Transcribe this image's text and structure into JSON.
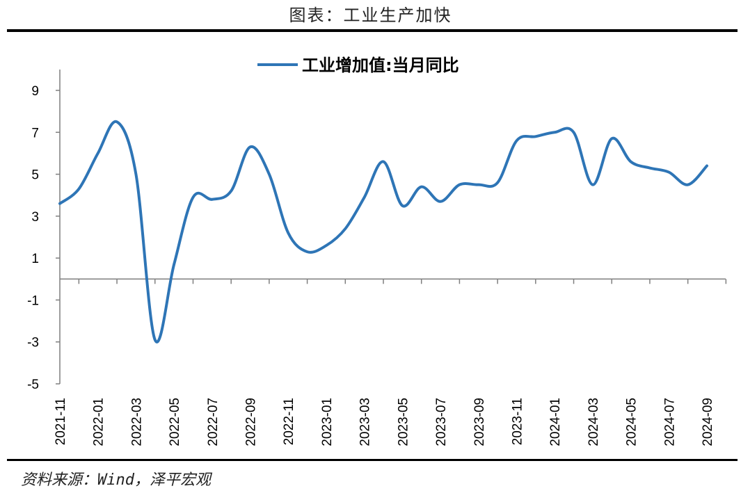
{
  "figure": {
    "title": "图表：工业生产加快",
    "source": "资料来源：Wind，泽平宏观"
  },
  "chart_data": {
    "type": "line",
    "title": "",
    "xlabel": "",
    "ylabel": "",
    "ylim": [
      -5,
      9
    ],
    "yticks": [
      9,
      7,
      5,
      3,
      1,
      -1,
      -3,
      -5
    ],
    "grid": false,
    "legend_position": "top-center",
    "x_tick_labels": [
      "2021-11",
      "2022-01",
      "2022-03",
      "2022-05",
      "2022-07",
      "2022-09",
      "2022-11",
      "2023-01",
      "2023-03",
      "2023-05",
      "2023-07",
      "2023-09",
      "2023-11",
      "2024-01",
      "2024-03",
      "2024-05",
      "2024-07",
      "2024-09"
    ],
    "x": [
      "2021-11",
      "2021-12",
      "2022-01",
      "2022-02",
      "2022-03",
      "2022-04",
      "2022-05",
      "2022-06",
      "2022-07",
      "2022-08",
      "2022-09",
      "2022-10",
      "2022-11",
      "2022-12",
      "2023-01",
      "2023-02",
      "2023-03",
      "2023-04",
      "2023-05",
      "2023-06",
      "2023-07",
      "2023-08",
      "2023-09",
      "2023-10",
      "2023-11",
      "2023-12",
      "2024-01",
      "2024-02",
      "2024-03",
      "2024-04",
      "2024-05",
      "2024-06",
      "2024-07",
      "2024-08",
      "2024-09"
    ],
    "series": [
      {
        "name": "工业增加值:当月同比",
        "color": "#2e75b6",
        "values": [
          3.6,
          4.3,
          6.0,
          7.5,
          5.0,
          -2.9,
          0.7,
          3.9,
          3.8,
          4.2,
          6.3,
          5.0,
          2.2,
          1.3,
          1.6,
          2.4,
          3.9,
          5.6,
          3.5,
          4.4,
          3.7,
          4.5,
          4.5,
          4.6,
          6.6,
          6.8,
          7.0,
          7.0,
          4.5,
          6.7,
          5.6,
          5.3,
          5.1,
          4.5,
          5.4
        ]
      }
    ]
  }
}
